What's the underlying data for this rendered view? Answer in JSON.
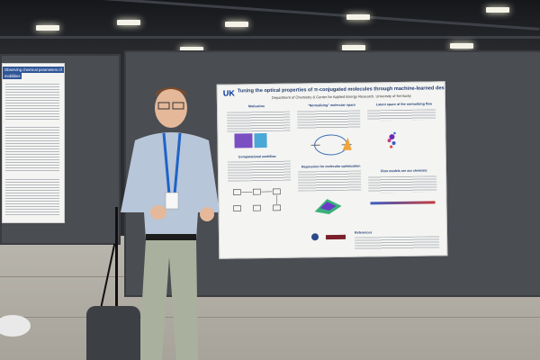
{
  "poster_main": {
    "logo": "UK",
    "title": "Tuning the optical properties of π-conjugated molecules through machine-learned design",
    "department": "Department of Chemistry & Center for Applied Energy Research, University of Kentucky",
    "sections": [
      "Motivation",
      "\"Normalizing\" molecular space",
      "Latent space of the normalizing flow",
      "Computational workflow",
      "Regression for molecular optimization",
      "Flow models are our chemists",
      "References"
    ]
  },
  "poster_left": {
    "title": "Observing chemical parameters of",
    "title2": "mobilities"
  },
  "colors": {
    "board": "#4a4d52",
    "poster": "#f4f4f2",
    "accent_blue": "#1d3d78"
  }
}
